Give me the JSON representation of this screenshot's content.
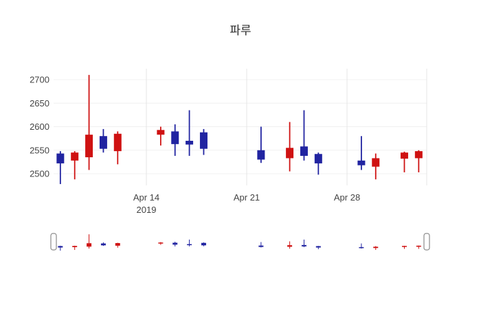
{
  "title": "파루",
  "colors": {
    "up": "#cf1212",
    "down": "#2124a1",
    "grid_v": "#e6e6e6",
    "grid_h": "#f0f0f0",
    "tick_text": "#444444",
    "handle_stroke": "#8a8a8a",
    "background": "#ffffff"
  },
  "chart_data": {
    "type": "candlestick",
    "title": "파루",
    "legend": "none",
    "grid": "on",
    "rangeslider": true,
    "y_ticks": [
      2500,
      2550,
      2600,
      2650,
      2700
    ],
    "ylim": [
      2478,
      2712
    ],
    "x_ticks": [
      {
        "date": "2019-04-14",
        "lines": [
          "Apr 14",
          "2019"
        ]
      },
      {
        "date": "2019-04-21",
        "lines": [
          "Apr 21"
        ]
      },
      {
        "date": "2019-04-28",
        "lines": [
          "Apr 28"
        ]
      }
    ],
    "increasing_color": "#cf1212",
    "decreasing_color": "#2124a1",
    "candles": [
      {
        "date": "2019-04-08",
        "open": 2543,
        "high": 2548,
        "low": 2478,
        "close": 2522
      },
      {
        "date": "2019-04-09",
        "open": 2528,
        "high": 2548,
        "low": 2488,
        "close": 2545
      },
      {
        "date": "2019-04-10",
        "open": 2535,
        "high": 2710,
        "low": 2508,
        "close": 2583
      },
      {
        "date": "2019-04-11",
        "open": 2580,
        "high": 2595,
        "low": 2545,
        "close": 2553
      },
      {
        "date": "2019-04-12",
        "open": 2548,
        "high": 2590,
        "low": 2520,
        "close": 2585
      },
      {
        "date": "2019-04-15",
        "open": 2583,
        "high": 2600,
        "low": 2560,
        "close": 2593
      },
      {
        "date": "2019-04-16",
        "open": 2590,
        "high": 2605,
        "low": 2538,
        "close": 2563
      },
      {
        "date": "2019-04-17",
        "open": 2570,
        "high": 2635,
        "low": 2538,
        "close": 2562
      },
      {
        "date": "2019-04-18",
        "open": 2588,
        "high": 2595,
        "low": 2540,
        "close": 2553
      },
      {
        "date": "2019-04-22",
        "open": 2550,
        "high": 2600,
        "low": 2523,
        "close": 2530
      },
      {
        "date": "2019-04-24",
        "open": 2533,
        "high": 2610,
        "low": 2505,
        "close": 2555
      },
      {
        "date": "2019-04-25",
        "open": 2558,
        "high": 2635,
        "low": 2528,
        "close": 2538
      },
      {
        "date": "2019-04-26",
        "open": 2542,
        "high": 2545,
        "low": 2498,
        "close": 2522
      },
      {
        "date": "2019-04-29",
        "open": 2528,
        "high": 2580,
        "low": 2508,
        "close": 2518
      },
      {
        "date": "2019-04-30",
        "open": 2515,
        "high": 2543,
        "low": 2488,
        "close": 2533
      },
      {
        "date": "2019-05-02",
        "open": 2532,
        "high": 2547,
        "low": 2503,
        "close": 2545
      },
      {
        "date": "2019-05-03",
        "open": 2533,
        "high": 2550,
        "low": 2503,
        "close": 2548
      }
    ]
  }
}
